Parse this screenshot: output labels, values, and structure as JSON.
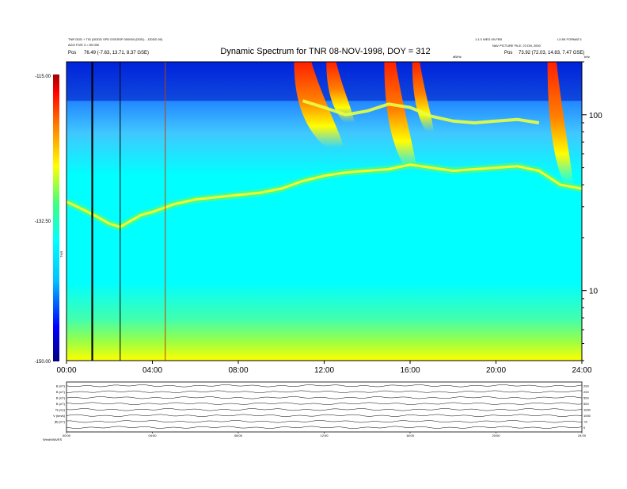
{
  "chart_data": {
    "type": "heatmap",
    "title": "Dynamic Spectrum for TNR 08-NOV-1998, DOY = 312",
    "header_left_line1": "TNR DDD + TID (DDDD SPD DSSSSP 000000 (DDD) ...DDDD 50)",
    "header_left_line2": "AGO FIVE 3 = 50.000",
    "header_left_line3_label": "Pos",
    "header_left_line3_value": "76.49 (-7.63, 13.71, 8.37 GSE)",
    "header_right_line1": "1.1.0 WED 09-FEB",
    "header_right_line2": "L3 8K FORMAT:1",
    "header_right_line3": "NAV PICTURE FILE: 23 DN, 2000",
    "header_right_line4_label": "Pos",
    "header_right_line4_value": "73.92 (72.03, 14.83, 7.47 GSE)",
    "header_right_unit_small": "dB/Hz",
    "right_axis_unit": "kHz",
    "colorbar": {
      "label": "TNR",
      "min": -150.0,
      "mid": -132.5,
      "max": -115.0,
      "tick_labels": [
        "-115.00",
        "-132.50",
        "-150.00"
      ],
      "colors": [
        "#000080",
        "#0000ff",
        "#00c0ff",
        "#00ffff",
        "#40ff80",
        "#ffff00",
        "#ff8000",
        "#ff0000",
        "#a00000"
      ]
    },
    "x_axis": {
      "range_hours": [
        0,
        24
      ],
      "tick_hours": [
        0,
        4,
        8,
        12,
        16,
        20,
        24
      ],
      "tick_labels": [
        "00:00",
        "04:00",
        "08:00",
        "12:00",
        "16:00",
        "20:00",
        "24:00"
      ]
    },
    "y_axis_right": {
      "scale": "log",
      "range_khz": [
        4,
        200
      ],
      "tick_values": [
        10,
        100
      ],
      "tick_labels": [
        "10",
        "100"
      ]
    },
    "features": {
      "plasma_line": [
        {
          "t": 0.0,
          "f": 32
        },
        {
          "t": 0.5,
          "f": 30
        },
        {
          "t": 1.0,
          "f": 28
        },
        {
          "t": 1.5,
          "f": 26
        },
        {
          "t": 2.0,
          "f": 24
        },
        {
          "t": 2.5,
          "f": 23
        },
        {
          "t": 3.0,
          "f": 25
        },
        {
          "t": 3.5,
          "f": 27
        },
        {
          "t": 4.0,
          "f": 28
        },
        {
          "t": 5.0,
          "f": 31
        },
        {
          "t": 6.0,
          "f": 33
        },
        {
          "t": 7.0,
          "f": 34
        },
        {
          "t": 8.0,
          "f": 35
        },
        {
          "t": 9.0,
          "f": 36
        },
        {
          "t": 10.0,
          "f": 38
        },
        {
          "t": 11.0,
          "f": 42
        },
        {
          "t": 12.0,
          "f": 45
        },
        {
          "t": 13.0,
          "f": 47
        },
        {
          "t": 14.0,
          "f": 48
        },
        {
          "t": 15.0,
          "f": 49
        },
        {
          "t": 16.0,
          "f": 52
        },
        {
          "t": 17.0,
          "f": 50
        },
        {
          "t": 18.0,
          "f": 48
        },
        {
          "t": 19.0,
          "f": 49
        },
        {
          "t": 20.0,
          "f": 50
        },
        {
          "t": 21.0,
          "f": 51
        },
        {
          "t": 22.0,
          "f": 48
        },
        {
          "t": 23.0,
          "f": 40
        },
        {
          "t": 24.0,
          "f": 38
        }
      ],
      "upper_ridge": [
        {
          "t": 11.0,
          "f": 120
        },
        {
          "t": 12.0,
          "f": 110
        },
        {
          "t": 13.0,
          "f": 100
        },
        {
          "t": 14.0,
          "f": 105
        },
        {
          "t": 15.0,
          "f": 115
        },
        {
          "t": 16.0,
          "f": 110
        },
        {
          "t": 17.0,
          "f": 98
        },
        {
          "t": 18.0,
          "f": 92
        },
        {
          "t": 19.0,
          "f": 90
        },
        {
          "t": 20.0,
          "f": 92
        },
        {
          "t": 21.0,
          "f": 94
        },
        {
          "t": 22.0,
          "f": 90
        }
      ],
      "type3_bursts": [
        {
          "t_start": 10.6,
          "t_end": 12.9,
          "f_top": 200,
          "f_bottom": 65
        },
        {
          "t_start": 12.1,
          "t_end": 13.4,
          "f_top": 200,
          "f_bottom": 90
        },
        {
          "t_start": 14.8,
          "t_end": 16.3,
          "f_top": 200,
          "f_bottom": 50
        },
        {
          "t_start": 16.1,
          "t_end": 17.1,
          "f_top": 200,
          "f_bottom": 80
        },
        {
          "t_start": 22.4,
          "t_end": 23.6,
          "f_top": 200,
          "f_bottom": 40
        }
      ],
      "vertical_lines_hours": [
        1.2,
        2.5,
        4.6
      ]
    }
  },
  "bottom_panels": {
    "row_labels": [
      "B (nT)",
      "B (nT)",
      "B (nT)",
      "B (nT)",
      "N (/cc)",
      "V (km/s)",
      "|B| (nT)",
      ""
    ],
    "right_labels": [
      "200",
      "200",
      "500",
      "500",
      "1000",
      "1000",
      "+8",
      "0"
    ],
    "x_tick_labels": [
      "00:00",
      "04:00",
      "08:00",
      "12:00",
      "16:00",
      "20:00",
      "24:00"
    ],
    "footer_note": "Wind/WAVES"
  }
}
